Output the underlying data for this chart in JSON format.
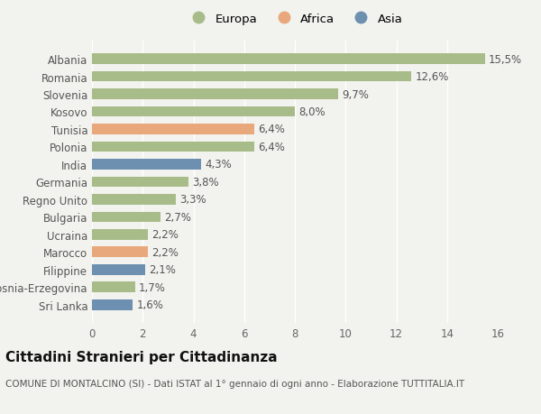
{
  "countries": [
    "Albania",
    "Romania",
    "Slovenia",
    "Kosovo",
    "Tunisia",
    "Polonia",
    "India",
    "Germania",
    "Regno Unito",
    "Bulgaria",
    "Ucraina",
    "Marocco",
    "Filippine",
    "Bosnia-Erzegovina",
    "Sri Lanka"
  ],
  "values": [
    15.5,
    12.6,
    9.7,
    8.0,
    6.4,
    6.4,
    4.3,
    3.8,
    3.3,
    2.7,
    2.2,
    2.2,
    2.1,
    1.7,
    1.6
  ],
  "labels": [
    "15,5%",
    "12,6%",
    "9,7%",
    "8,0%",
    "6,4%",
    "6,4%",
    "4,3%",
    "3,8%",
    "3,3%",
    "2,7%",
    "2,2%",
    "2,2%",
    "2,1%",
    "1,7%",
    "1,6%"
  ],
  "continent": [
    "Europa",
    "Europa",
    "Europa",
    "Europa",
    "Africa",
    "Europa",
    "Asia",
    "Europa",
    "Europa",
    "Europa",
    "Europa",
    "Africa",
    "Asia",
    "Europa",
    "Asia"
  ],
  "color_europa": "#a8bc8a",
  "color_africa": "#e8a87c",
  "color_asia": "#6d8fb0",
  "background_color": "#f2f2ee",
  "title": "Cittadini Stranieri per Cittadinanza",
  "subtitle": "COMUNE DI MONTALCINO (SI) - Dati ISTAT al 1° gennaio di ogni anno - Elaborazione TUTTITALIA.IT",
  "xlim": [
    0,
    16
  ],
  "xticks": [
    0,
    2,
    4,
    6,
    8,
    10,
    12,
    14,
    16
  ],
  "legend_labels": [
    "Europa",
    "Africa",
    "Asia"
  ],
  "legend_colors": [
    "#a8bc8a",
    "#e8a87c",
    "#6d8fb0"
  ],
  "bar_height": 0.6,
  "label_fontsize": 8.5,
  "tick_fontsize": 8.5,
  "title_fontsize": 11,
  "subtitle_fontsize": 7.5
}
